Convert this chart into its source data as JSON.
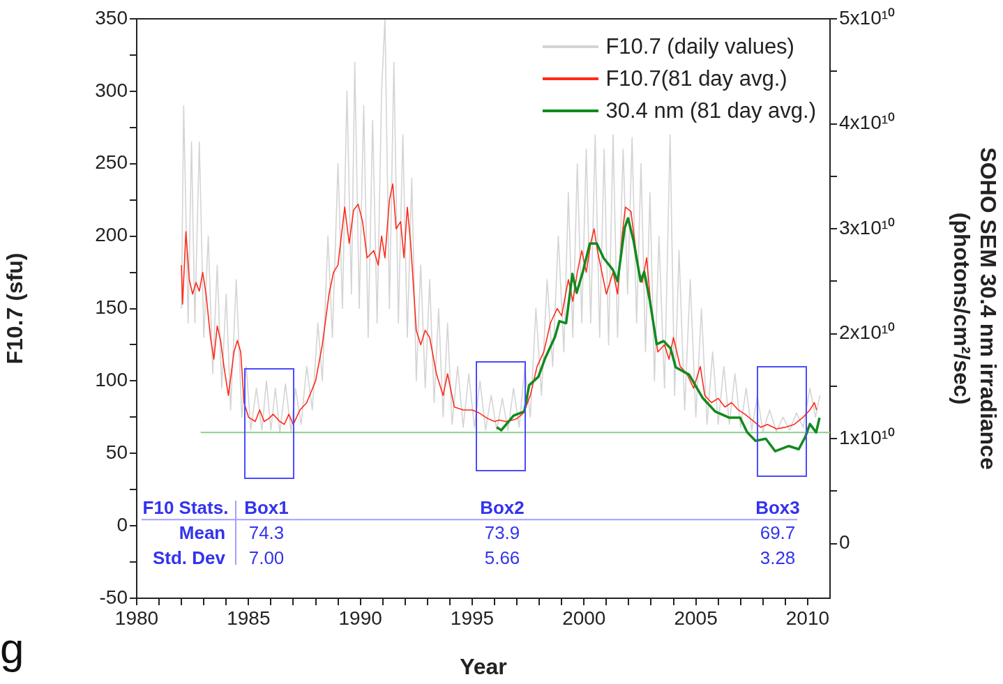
{
  "chart_data": {
    "type": "line",
    "xlabel": "Year",
    "ylabel": "F10.7 (sfu)",
    "y2label": "SOHO SEM 30.4 nm irradiance\n(photons/cm²/sec)",
    "legend": "top right",
    "marker": "none",
    "xlim": [
      1980,
      2011
    ],
    "xticks": [
      1980,
      {
        "value": 1981,
        "label": null
      },
      {
        "value": 1982,
        "label": null
      },
      {
        "value": 1983,
        "label": null
      },
      {
        "value": 1984,
        "label": null
      },
      1985,
      {
        "value": 1986,
        "label": null
      },
      {
        "value": 1987,
        "label": null
      },
      {
        "value": 1988,
        "label": null
      },
      {
        "value": 1989,
        "label": null
      },
      1990,
      {
        "value": 1991,
        "label": null
      },
      {
        "value": 1992,
        "label": null
      },
      {
        "value": 1993,
        "label": null
      },
      {
        "value": 1994,
        "label": null
      },
      1995,
      {
        "value": 1996,
        "label": null
      },
      {
        "value": 1997,
        "label": null
      },
      {
        "value": 1998,
        "label": null
      },
      {
        "value": 1999,
        "label": null
      },
      2000,
      {
        "value": 2001,
        "label": null
      },
      {
        "value": 2002,
        "label": null
      },
      {
        "value": 2003,
        "label": null
      },
      {
        "value": 2004,
        "label": null
      },
      2005,
      {
        "value": 2006,
        "label": null
      },
      {
        "value": 2007,
        "label": null
      },
      {
        "value": 2008,
        "label": null
      },
      {
        "value": 2009,
        "label": null
      },
      2010
    ],
    "ylim": [
      -50,
      350
    ],
    "yticks": [
      -50,
      {
        "value": -25,
        "label": null
      },
      0,
      {
        "value": 25,
        "label": null
      },
      50,
      {
        "value": 75,
        "label": null
      },
      100,
      {
        "value": 125,
        "label": null
      },
      150,
      {
        "value": 175,
        "label": null
      },
      200,
      {
        "value": 225,
        "label": null
      },
      250,
      {
        "value": 275,
        "label": null
      },
      300,
      {
        "value": 325,
        "label": null
      },
      350
    ],
    "y2lim": [
      -5200000000.0,
      50000000000.0
    ],
    "y2ticks": [
      0,
      {
        "value": 5000000000.0,
        "label": null
      },
      {
        "value": 10000000000.0,
        "label": "1x10¹⁰"
      },
      {
        "value": 15000000000.0,
        "label": null
      },
      {
        "value": 20000000000.0,
        "label": "2x10¹⁰"
      },
      {
        "value": 25000000000.0,
        "label": null
      },
      {
        "value": 30000000000.0,
        "label": "3x10¹⁰"
      },
      {
        "value": 35000000000.0,
        "label": null
      },
      {
        "value": 40000000000.0,
        "label": "4x10¹⁰"
      },
      {
        "value": 45000000000.0,
        "label": null
      },
      {
        "value": 50000000000.0,
        "label": "5x10¹⁰"
      }
    ],
    "series": [
      {
        "name": "F10.7 (daily values)",
        "color": "#d4d4d4",
        "x": [
          1982.0,
          1982.1,
          1982.3,
          1982.45,
          1982.6,
          1982.8,
          1983.0,
          1983.2,
          1983.4,
          1983.6,
          1983.8,
          1984.0,
          1984.2,
          1984.45,
          1984.7,
          1984.9,
          1985.1,
          1985.35,
          1985.6,
          1985.8,
          1986.0,
          1986.2,
          1986.4,
          1986.65,
          1986.9,
          1987.1,
          1987.35,
          1987.6,
          1987.85,
          1988.1,
          1988.3,
          1988.55,
          1988.75,
          1989.0,
          1989.2,
          1989.4,
          1989.6,
          1989.75,
          1989.95,
          1990.15,
          1990.35,
          1990.55,
          1990.75,
          1990.95,
          1991.1,
          1991.3,
          1991.5,
          1991.7,
          1991.9,
          1992.1,
          1992.3,
          1992.5,
          1992.7,
          1992.9,
          1993.1,
          1993.3,
          1993.5,
          1993.7,
          1993.9,
          1994.1,
          1994.35,
          1994.6,
          1994.85,
          1995.1,
          1995.35,
          1995.6,
          1995.85,
          1996.1,
          1996.35,
          1996.6,
          1996.85,
          1997.1,
          1997.35,
          1997.6,
          1997.85,
          1998.1,
          1998.35,
          1998.6,
          1998.85,
          1999.1,
          1999.3,
          1999.5,
          1999.7,
          1999.9,
          2000.1,
          2000.3,
          2000.5,
          2000.7,
          2000.9,
          2001.1,
          2001.3,
          2001.5,
          2001.75,
          2001.95,
          2002.15,
          2002.35,
          2002.55,
          2002.75,
          2002.95,
          2003.15,
          2003.35,
          2003.6,
          2003.85,
          2004.05,
          2004.25,
          2004.5,
          2004.75,
          2005.0,
          2005.25,
          2005.5,
          2005.75,
          2006.0,
          2006.25,
          2006.5,
          2006.75,
          2007.0,
          2007.25,
          2007.5,
          2007.75,
          2008.0,
          2008.3,
          2008.6,
          2008.9,
          2009.2,
          2009.5,
          2009.8,
          2010.1,
          2010.35,
          2010.55
        ],
        "values": [
          150,
          290,
          140,
          265,
          140,
          265,
          130,
          200,
          105,
          180,
          95,
          160,
          80,
          170,
          75,
          110,
          66,
          95,
          66,
          100,
          66,
          95,
          64,
          98,
          65,
          95,
          70,
          110,
          80,
          140,
          100,
          200,
          130,
          250,
          150,
          300,
          160,
          320,
          150,
          290,
          130,
          280,
          140,
          300,
          350,
          150,
          320,
          140,
          270,
          130,
          240,
          100,
          180,
          95,
          170,
          85,
          150,
          75,
          140,
          70,
          110,
          68,
          105,
          68,
          100,
          66,
          90,
          66,
          88,
          66,
          95,
          68,
          110,
          75,
          150,
          90,
          170,
          110,
          200,
          120,
          230,
          130,
          250,
          140,
          260,
          140,
          270,
          130,
          260,
          125,
          270,
          130,
          260,
          160,
          268,
          140,
          250,
          120,
          230,
          100,
          200,
          95,
          270,
          90,
          190,
          80,
          170,
          75,
          150,
          70,
          120,
          70,
          110,
          70,
          105,
          68,
          95,
          66,
          90,
          65,
          80,
          65,
          75,
          66,
          78,
          68,
          95,
          75,
          90
        ]
      },
      {
        "color": "#8fcc8f",
        "x": [
          1982.86,
          2011
        ],
        "values": [
          64.5,
          64.5
        ]
      },
      {
        "name": "F10.7(81 day avg.)",
        "color": "#ff2a1a",
        "x": [
          1982.0,
          1982.05,
          1982.2,
          1982.35,
          1982.5,
          1982.65,
          1982.8,
          1982.95,
          1983.1,
          1983.3,
          1983.45,
          1983.6,
          1983.75,
          1983.9,
          1984.1,
          1984.35,
          1984.5,
          1984.65,
          1984.8,
          1985.0,
          1985.3,
          1985.5,
          1985.7,
          1985.9,
          1986.1,
          1986.4,
          1986.6,
          1986.8,
          1987.0,
          1987.3,
          1987.6,
          1988.0,
          1988.3,
          1988.6,
          1988.8,
          1989.0,
          1989.15,
          1989.3,
          1989.5,
          1989.7,
          1989.9,
          1990.1,
          1990.3,
          1990.6,
          1990.8,
          1990.95,
          1991.1,
          1991.3,
          1991.45,
          1991.6,
          1991.8,
          1991.95,
          1992.1,
          1992.25,
          1992.5,
          1992.7,
          1992.9,
          1993.1,
          1993.4,
          1993.7,
          1993.9,
          1994.2,
          1994.6,
          1995.0,
          1995.3,
          1995.7,
          1996.0,
          1996.2,
          1996.5,
          1996.8,
          1997.0,
          1997.3,
          1997.6,
          1997.9,
          1998.2,
          1998.5,
          1998.8,
          1999.0,
          1999.3,
          1999.5,
          1999.7,
          1999.9,
          2000.1,
          2000.3,
          2000.45,
          2000.6,
          2000.8,
          2001.0,
          2001.3,
          2001.5,
          2001.7,
          2001.85,
          2002.1,
          2002.4,
          2002.6,
          2002.8,
          2003.0,
          2003.3,
          2003.6,
          2003.8,
          2004.0,
          2004.3,
          2004.6,
          2004.9,
          2005.2,
          2005.4,
          2005.7,
          2006.0,
          2006.3,
          2006.6,
          2006.9,
          2007.2,
          2007.6,
          2007.9,
          2008.2,
          2008.6,
          2009.0,
          2009.4,
          2009.8,
          2010.1,
          2010.3,
          2010.4
        ],
        "values": [
          180,
          153,
          203,
          170,
          160,
          168,
          162,
          175,
          160,
          130,
          115,
          138,
          128,
          110,
          90,
          120,
          128,
          120,
          85,
          75,
          72,
          80,
          72,
          74,
          77,
          72,
          70,
          77,
          70,
          80,
          85,
          100,
          125,
          160,
          175,
          180,
          200,
          220,
          195,
          218,
          222,
          210,
          185,
          190,
          180,
          200,
          185,
          225,
          236,
          205,
          210,
          185,
          220,
          195,
          135,
          125,
          135,
          130,
          105,
          90,
          105,
          82,
          80,
          80,
          78,
          74,
          72,
          73,
          72,
          73,
          74,
          78,
          90,
          110,
          120,
          140,
          150,
          145,
          170,
          155,
          175,
          190,
          175,
          195,
          205,
          190,
          175,
          160,
          175,
          160,
          200,
          220,
          217,
          180,
          168,
          185,
          150,
          120,
          125,
          115,
          130,
          110,
          105,
          95,
          110,
          90,
          85,
          88,
          82,
          85,
          80,
          77,
          72,
          68,
          70,
          67,
          68,
          70,
          75,
          80,
          85,
          80
        ]
      },
      {
        "name": "30.4 nm (81 day avg.)",
        "color": "#118a1e",
        "axis": "y2",
        "x": [
          1996.1,
          1996.3,
          1996.85,
          1997.33,
          1997.55,
          1997.96,
          1998.27,
          1998.7,
          1998.9,
          1999.2,
          1999.48,
          1999.67,
          1999.95,
          2000.26,
          2000.57,
          2000.88,
          2001.29,
          2001.5,
          2001.82,
          2001.97,
          2002.22,
          2002.53,
          2002.69,
          2002.94,
          2003.25,
          2003.56,
          2003.87,
          2004.1,
          2004.7,
          2005.3,
          2005.86,
          2006.5,
          2006.98,
          2007.3,
          2007.67,
          2008.13,
          2008.55,
          2009.16,
          2009.6,
          2009.9,
          2010.1,
          2010.38,
          2010.53
        ],
        "values": [
          11100000000.0,
          10800000000.0,
          12200000000.0,
          12600000000.0,
          15100000000.0,
          15900000000.0,
          17700000000.0,
          19700000000.0,
          21200000000.0,
          21000000000.0,
          25700000000.0,
          23900000000.0,
          25900000000.0,
          28600000000.0,
          28600000000.0,
          27200000000.0,
          26100000000.0,
          25000000000.0,
          30100000000.0,
          31000000000.0,
          28800000000.0,
          25000000000.0,
          25900000000.0,
          23200000000.0,
          19000000000.0,
          19300000000.0,
          18600000000.0,
          16800000000.0,
          16100000000.0,
          13900000000.0,
          12600000000.0,
          12000000000.0,
          12000000000.0,
          10600000000.0,
          9800000000.0,
          10000000000.0,
          8800000000.0,
          9300000000.0,
          9000000000.0,
          10200000000.0,
          11400000000.0,
          10600000000.0,
          12000000000.0
        ]
      }
    ],
    "ref_lines": [
      {
        "axis": "y",
        "value": 4.3,
        "color": "#a0a0ff"
      }
    ],
    "annotations": [
      "F10 Stats.",
      "Box1",
      "Box2",
      "Box3",
      "Mean",
      "Std. Dev",
      "74.3",
      "73.9",
      "69.7",
      "7.00",
      "5.66",
      "3.28",
      "g"
    ]
  }
}
